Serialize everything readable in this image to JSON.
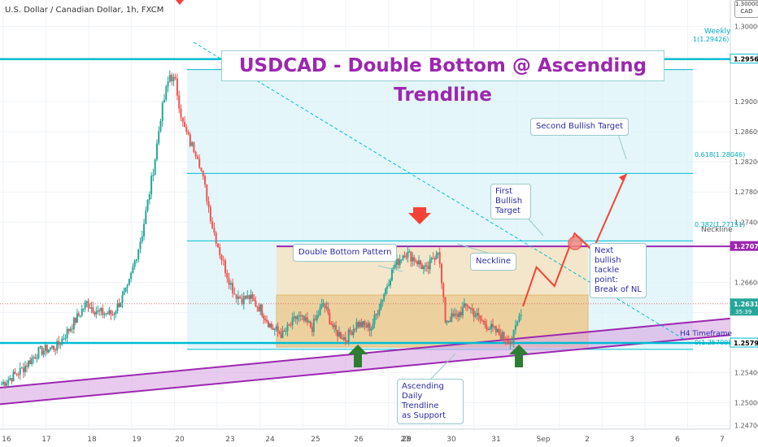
{
  "header": {
    "symbol_line": "U.S. Dollar / Canadian Dollar, 1h, FXCM"
  },
  "currency_badge": {
    "line1": "1.30000",
    "line2": "CAD"
  },
  "title": "USDCAD - Double Bottom @ Ascending Trendline",
  "annotations": {
    "double_bottom": "Double Bottom Pattern",
    "neckline": "Neckline",
    "first_target_1": "First",
    "first_target_2": "Bullish",
    "first_target_3": "Target",
    "second_target": "Second Bullish Target",
    "next_bullish_1": "Next bullish",
    "next_bullish_2": "tackle point:",
    "next_bullish_3": "Break of NL",
    "ascending_1": "Ascending",
    "ascending_2": "Daily Trendline",
    "ascending_3": "as Support",
    "h4": "H4 Timeframe",
    "weekly": "Weekly",
    "neckline_axis": "Neckline",
    "fib_1": "1(1.29426)",
    "fib_618": "0.618(1.28046)",
    "fib_382": "0.382(1.27151)",
    "fib_0": "0(1.25709)"
  },
  "colors": {
    "up": "#26a69a",
    "down": "#ef5350",
    "teal_line": "#00bcd4",
    "purple": "#9c27b0",
    "fib_area": "#d9f2f7",
    "orange_box": "#f0c27a",
    "arrow_red": "#f44336",
    "arrow_green": "#2e7d32"
  },
  "chart_data": {
    "type": "candlestick",
    "title": "USDCAD - Double Bottom @ Ascending Trendline",
    "symbol": "U.S. Dollar / Canadian Dollar, 1h, FXCM",
    "ylim": [
      1.2465,
      1.3035
    ],
    "y_ticks": [
      "1.30000",
      "1.29000",
      "1.28600",
      "1.28200",
      "1.27800",
      "1.27400",
      "1.26600",
      "1.26200",
      "1.25800",
      "1.25400",
      "1.25000",
      "1.24700"
    ],
    "x_ticks": [
      "16",
      "17",
      "18",
      "19",
      "20",
      "23",
      "24",
      "25",
      "26",
      "27",
      "28",
      "29",
      "30",
      "31",
      "Sep",
      "2",
      "3",
      "6",
      "7"
    ],
    "price_labels": [
      {
        "label": "1.29565",
        "value": 1.29565,
        "kind": "weekly"
      },
      {
        "label": "1.27077",
        "value": 1.27077,
        "kind": "neckline"
      },
      {
        "label": "1.26315",
        "value": 1.26315,
        "kind": "last",
        "sub": "35:39"
      },
      {
        "label": "1.25794",
        "value": 1.25794,
        "kind": "h4"
      }
    ],
    "weekly_level": 1.29565,
    "h4_level": 1.25794,
    "neckline": 1.27077,
    "last_price": 1.26315,
    "fib_levels": [
      {
        "ratio": 1,
        "price": 1.29426
      },
      {
        "ratio": 0.618,
        "price": 1.28046
      },
      {
        "ratio": 0.382,
        "price": 1.27151
      },
      {
        "ratio": 0,
        "price": 1.25709
      }
    ],
    "double_bottom_box": {
      "top": 1.2643,
      "bottom": 1.2574
    },
    "trendline_days": {
      "start_day": 0,
      "start_price": 1.252,
      "end_day": 19,
      "end_price": 1.2612,
      "width": 0.0022
    },
    "descending_line": {
      "start_day": 4.5,
      "start_price": 1.2962,
      "end_day": 17.5,
      "end_price": 1.258
    },
    "projection_path": [
      {
        "day": 14.0,
        "price": 1.2628
      },
      {
        "day": 14.3,
        "price": 1.268
      },
      {
        "day": 14.7,
        "price": 1.2655
      },
      {
        "day": 15.15,
        "price": 1.2725
      },
      {
        "day": 15.55,
        "price": 1.2702
      },
      {
        "day": 16.3,
        "price": 1.2804
      }
    ],
    "candles_anchor": [
      [
        0,
        1.2525
      ],
      [
        0.5,
        1.2542
      ],
      [
        1.0,
        1.2568
      ],
      [
        1.5,
        1.2575
      ],
      [
        2.0,
        1.261
      ],
      [
        2.3,
        1.2633
      ],
      [
        2.6,
        1.262
      ],
      [
        3.0,
        1.2618
      ],
      [
        3.4,
        1.265
      ],
      [
        3.6,
        1.2688
      ],
      [
        3.8,
        1.2725
      ],
      [
        4.0,
        1.278
      ],
      [
        4.15,
        1.2825
      ],
      [
        4.3,
        1.288
      ],
      [
        4.45,
        1.2915
      ],
      [
        4.55,
        1.2936
      ],
      [
        4.7,
        1.2925
      ],
      [
        4.9,
        1.287
      ],
      [
        5.1,
        1.2845
      ],
      [
        5.3,
        1.283
      ],
      [
        5.5,
        1.2785
      ],
      [
        5.7,
        1.2735
      ],
      [
        5.9,
        1.27
      ],
      [
        6.1,
        1.267
      ],
      [
        6.3,
        1.2645
      ],
      [
        6.5,
        1.2638
      ],
      [
        6.7,
        1.264
      ],
      [
        7.0,
        1.2625
      ],
      [
        7.3,
        1.26
      ],
      [
        7.6,
        1.259
      ],
      [
        8.0,
        1.2615
      ],
      [
        8.4,
        1.26
      ],
      [
        8.7,
        1.2632
      ],
      [
        9.0,
        1.2596
      ],
      [
        9.3,
        1.2585
      ],
      [
        9.6,
        1.2605
      ],
      [
        10.0,
        1.26
      ],
      [
        10.3,
        1.264
      ],
      [
        10.6,
        1.268
      ],
      [
        10.9,
        1.27
      ],
      [
        11.2,
        1.269
      ],
      [
        11.5,
        1.2675
      ],
      [
        11.8,
        1.2705
      ],
      [
        12.0,
        1.261
      ],
      [
        12.3,
        1.2615
      ],
      [
        12.6,
        1.263
      ],
      [
        12.9,
        1.2612
      ],
      [
        13.2,
        1.26
      ],
      [
        13.5,
        1.259
      ],
      [
        13.8,
        1.2582
      ],
      [
        14.0,
        1.2615
      ],
      [
        14.1,
        1.2632
      ]
    ],
    "day_count": 19
  }
}
